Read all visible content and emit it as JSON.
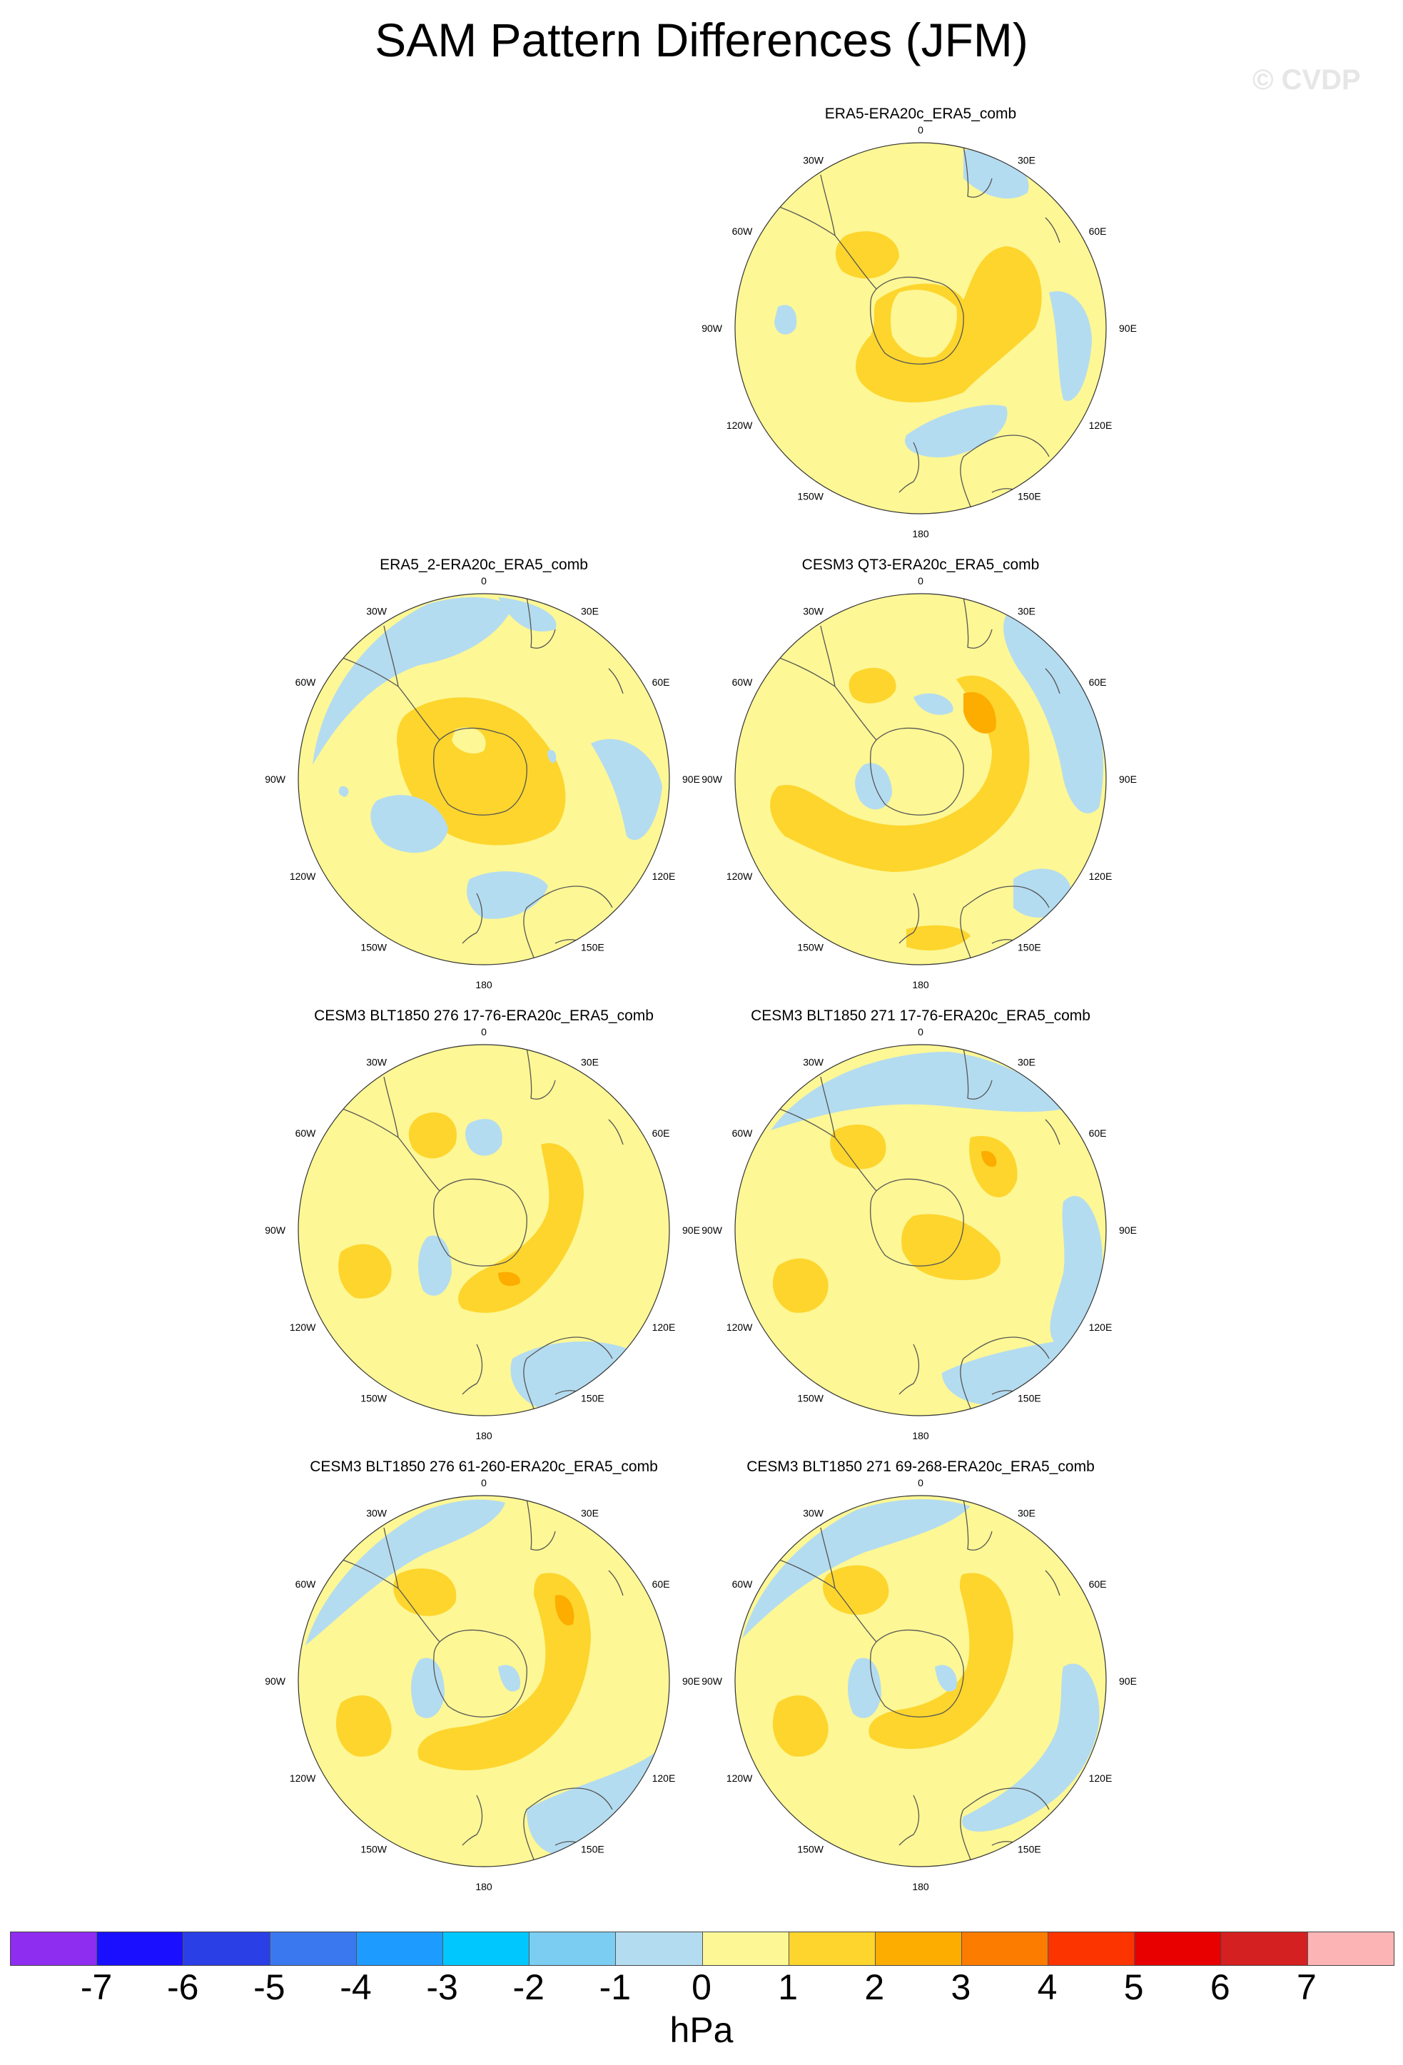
{
  "title": "SAM Pattern Differences (JFM)",
  "watermark": "© CVDP",
  "panels": [
    {
      "title": "ERA5-ERA20c_ERA5_comb"
    },
    {
      "title": "ERA5_2-ERA20c_ERA5_comb"
    },
    {
      "title": "CESM3 QT3-ERA20c_ERA5_comb"
    },
    {
      "title": "CESM3 BLT1850 276 17-76-ERA20c_ERA5_comb"
    },
    {
      "title": "CESM3 BLT1850 271 17-76-ERA20c_ERA5_comb"
    },
    {
      "title": "CESM3 BLT1850 276 61-260-ERA20c_ERA5_comb"
    },
    {
      "title": "CESM3 BLT1850 271 69-268-ERA20c_ERA5_comb"
    }
  ],
  "lon_labels": [
    "0",
    "30E",
    "60E",
    "90E",
    "120E",
    "150E",
    "180",
    "150W",
    "120W",
    "90W",
    "60W",
    "30W"
  ],
  "colorbar": {
    "colors": [
      "#8e2cf0",
      "#1a10ff",
      "#2a3fe6",
      "#3a78ef",
      "#1e9bff",
      "#00c8ff",
      "#7ccdf2",
      "#b4dcf0",
      "#fdf795",
      "#fdd52d",
      "#fcad00",
      "#fc7c00",
      "#fc3400",
      "#e80000",
      "#d42020",
      "#fdb4b4"
    ],
    "ticks": [
      "-7",
      "-6",
      "-5",
      "-4",
      "-3",
      "-2",
      "-1",
      "0",
      "1",
      "2",
      "3",
      "4",
      "5",
      "6",
      "7"
    ],
    "units": "hPa"
  }
}
